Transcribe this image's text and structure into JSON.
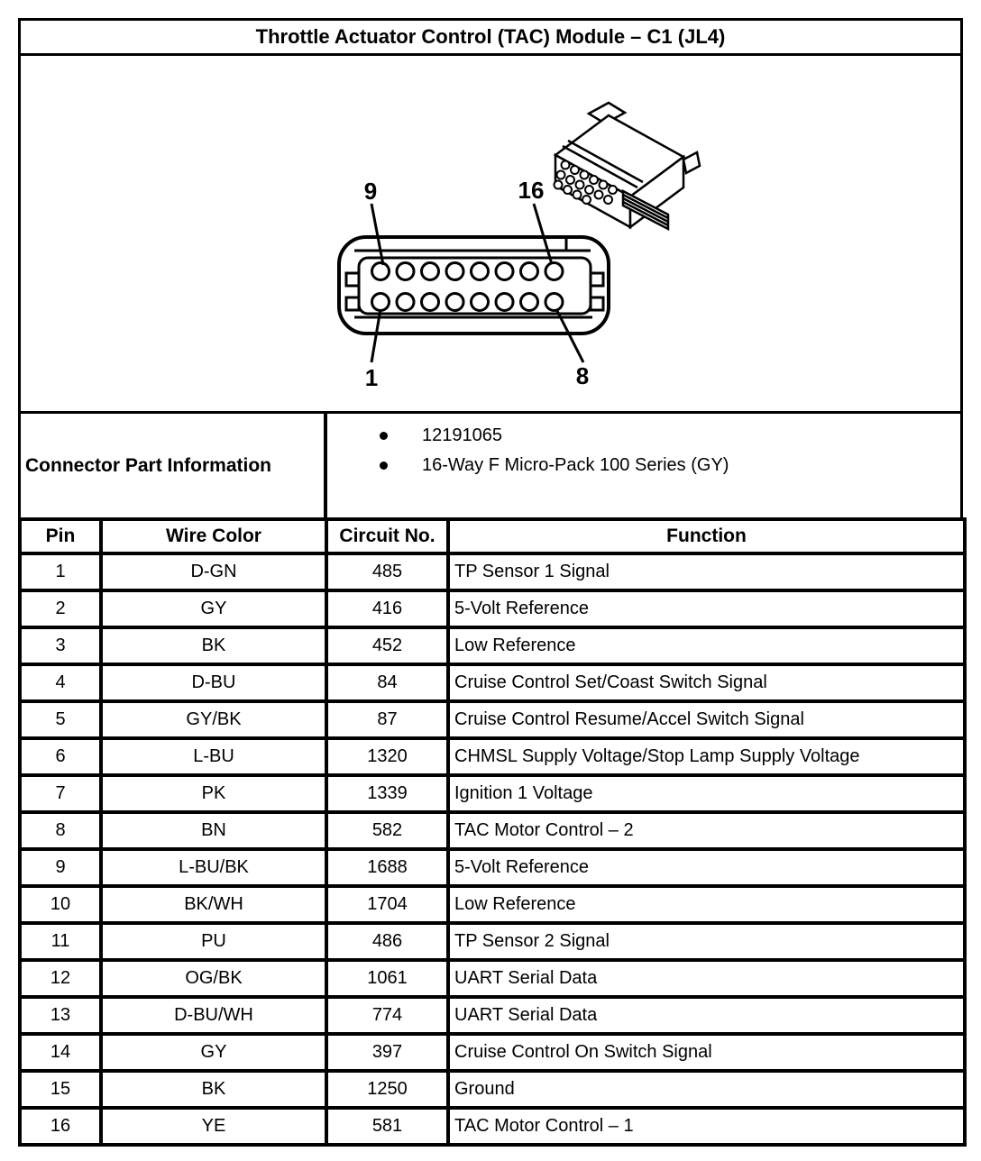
{
  "title": "Throttle Actuator Control (TAC) Module – C1 (JL4)",
  "diagram": {
    "pin_labels": {
      "top_left": "9",
      "top_right": "16",
      "bottom_left": "1",
      "bottom_right": "8"
    }
  },
  "connector_info": {
    "label": "Connector Part Information",
    "items": [
      "12191065",
      "16-Way F Micro-Pack 100 Series (GY)"
    ]
  },
  "pin_table": {
    "headers": [
      "Pin",
      "Wire Color",
      "Circuit No.",
      "Function"
    ],
    "rows": [
      [
        "1",
        "D-GN",
        "485",
        "TP Sensor 1 Signal"
      ],
      [
        "2",
        "GY",
        "416",
        "5-Volt Reference"
      ],
      [
        "3",
        "BK",
        "452",
        "Low Reference"
      ],
      [
        "4",
        "D-BU",
        "84",
        "Cruise Control Set/Coast Switch Signal"
      ],
      [
        "5",
        "GY/BK",
        "87",
        "Cruise Control Resume/Accel Switch Signal"
      ],
      [
        "6",
        "L-BU",
        "1320",
        "CHMSL Supply Voltage/Stop Lamp Supply Voltage"
      ],
      [
        "7",
        "PK",
        "1339",
        "Ignition 1 Voltage"
      ],
      [
        "8",
        "BN",
        "582",
        "TAC Motor Control – 2"
      ],
      [
        "9",
        "L-BU/BK",
        "1688",
        "5-Volt Reference"
      ],
      [
        "10",
        "BK/WH",
        "1704",
        "Low Reference"
      ],
      [
        "11",
        "PU",
        "486",
        "TP Sensor 2 Signal"
      ],
      [
        "12",
        "OG/BK",
        "1061",
        "UART Serial Data"
      ],
      [
        "13",
        "D-BU/WH",
        "774",
        "UART Serial Data"
      ],
      [
        "14",
        "GY",
        "397",
        "Cruise Control On Switch Signal"
      ],
      [
        "15",
        "BK",
        "1250",
        "Ground"
      ],
      [
        "16",
        "YE",
        "581",
        "TAC Motor Control – 1"
      ]
    ]
  }
}
